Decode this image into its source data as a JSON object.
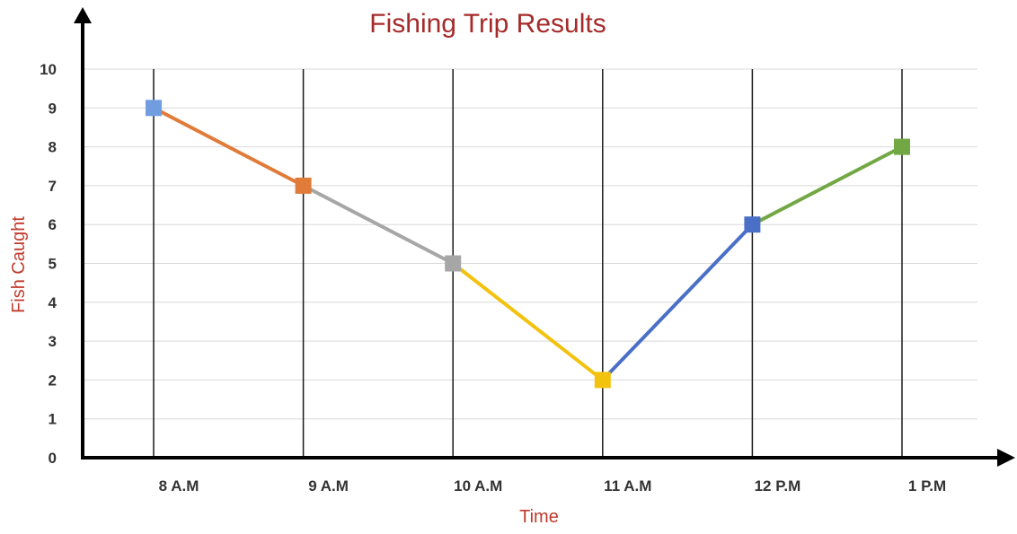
{
  "chart_data": {
    "type": "line",
    "title": "Fishing Trip Results",
    "xlabel": "Time",
    "ylabel": "Fish Caught",
    "categories": [
      "8 A.M",
      "9 A.M",
      "10 A.M",
      "11 A.M",
      "12 P.M",
      "1  P.M"
    ],
    "values": [
      9,
      7,
      5,
      2,
      6,
      8
    ],
    "yticks": [
      "0",
      "1",
      "2",
      "3",
      "4",
      "5",
      "6",
      "7",
      "8",
      "9",
      "10"
    ],
    "ylim": [
      0,
      10
    ],
    "grid": true,
    "legend": "none",
    "segment_colors": [
      "#e07b39",
      "#a6a6a6",
      "#f2c20f",
      "#4a6fc7",
      "#72a844"
    ],
    "marker_colors": [
      "#6f9de0",
      "#e07b39",
      "#a6a6a6",
      "#f2c20f",
      "#4a6fc7",
      "#72a844"
    ],
    "title_color": "#a52a2a",
    "label_color": "#c0392b"
  }
}
